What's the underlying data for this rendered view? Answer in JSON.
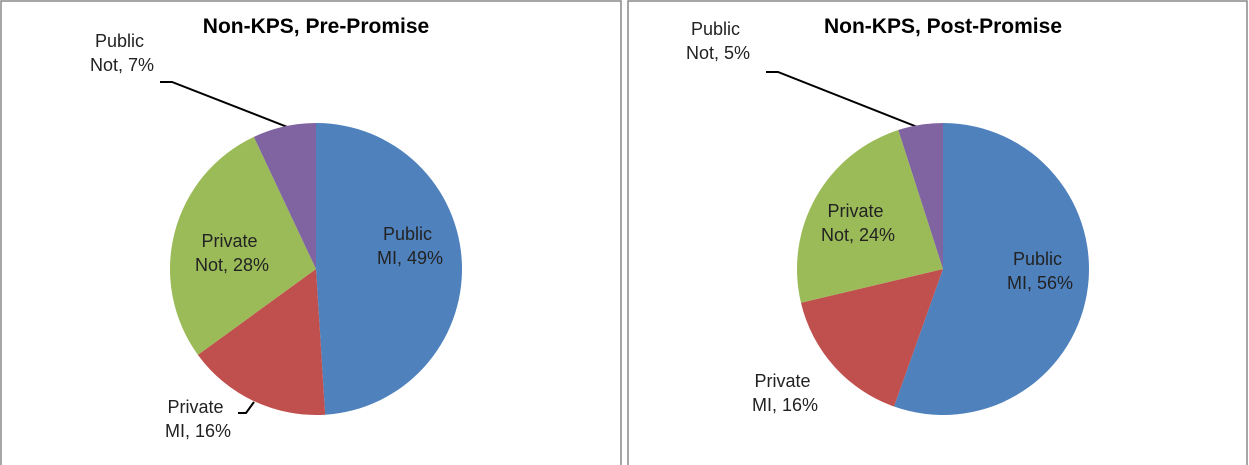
{
  "chart_data": [
    {
      "type": "pie",
      "title": "Non-KPS, Pre-Promise",
      "values": [
        49,
        16,
        28,
        7
      ],
      "value_labels": [
        "Public MI, 49%",
        "Private MI, 16%",
        "Private Not, 28%",
        "Public Not, 7%"
      ],
      "colors": [
        "#4f81bd",
        "#c0504d",
        "#9bbb59",
        "#8064a2"
      ]
    },
    {
      "type": "pie",
      "title": "Non-KPS, Post-Promise",
      "values": [
        56,
        16,
        24,
        5
      ],
      "value_labels": [
        "Public MI, 56%",
        "Private MI, 16%",
        "Private Not, 24%",
        "Public Not, 5%"
      ],
      "colors": [
        "#4f81bd",
        "#c0504d",
        "#9bbb59",
        "#8064a2"
      ]
    }
  ]
}
